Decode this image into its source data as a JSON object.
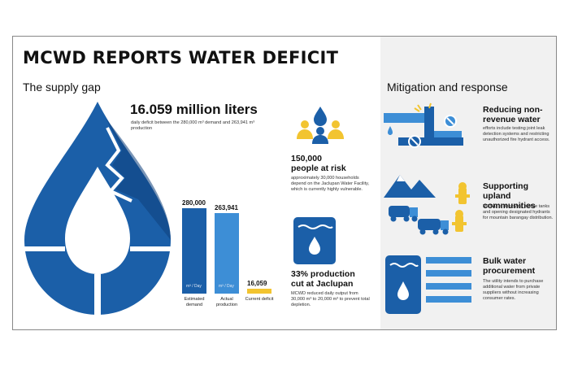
{
  "title": "MCWD REPORTS WATER DEFICIT",
  "left_heading": "The supply gap",
  "right_heading": "Mitigation and response",
  "deficit": {
    "value": "16.059 million liters",
    "desc": "daily deficit between the 280,000 m³ demand and 263,941 m³ production"
  },
  "people": {
    "value": "150,000\npeople at risk",
    "desc": "approximately 30,000 households depend on the Jaclupan Water Facility, which is currently highly vulnerable."
  },
  "production_cut": {
    "value": "33% production cut at Jaclupan",
    "desc": "MCWD reduced daily output from 30,000 m³ to 20,000 m³ to prevent total depletion."
  },
  "chart_data": {
    "type": "bar",
    "categories": [
      "Estimated demand",
      "Actual production",
      "Current deficit"
    ],
    "values": [
      280000,
      263941,
      16059
    ],
    "labels": [
      "280,000",
      "263,941",
      "16,059"
    ],
    "unit_label": "m³ / Day",
    "colors": [
      "#1b5fa8",
      "#3d8ed6",
      "#f2c430"
    ]
  },
  "mitigation": [
    {
      "icon": "pipes-icon",
      "title": "Reducing non-revenue water",
      "desc": "efforts include testing joint leak detection systems and restricting unauthorized fire hydrant access."
    },
    {
      "icon": "tanker-truck-icon",
      "title": "Supporting upland communities",
      "desc": "MCWD is deploying mobile tanks and opening designated hydrants for mountain barangay distribution."
    },
    {
      "icon": "water-tank-icon",
      "title": "Bulk water procurement",
      "desc": "The utility intends to purchase additional water from private suppliers without increasing consumer rates."
    }
  ],
  "colors": {
    "primary": "#1b5fa8",
    "light": "#3d8ed6",
    "accent": "#f2c430",
    "panel": "#f1f1f1"
  }
}
